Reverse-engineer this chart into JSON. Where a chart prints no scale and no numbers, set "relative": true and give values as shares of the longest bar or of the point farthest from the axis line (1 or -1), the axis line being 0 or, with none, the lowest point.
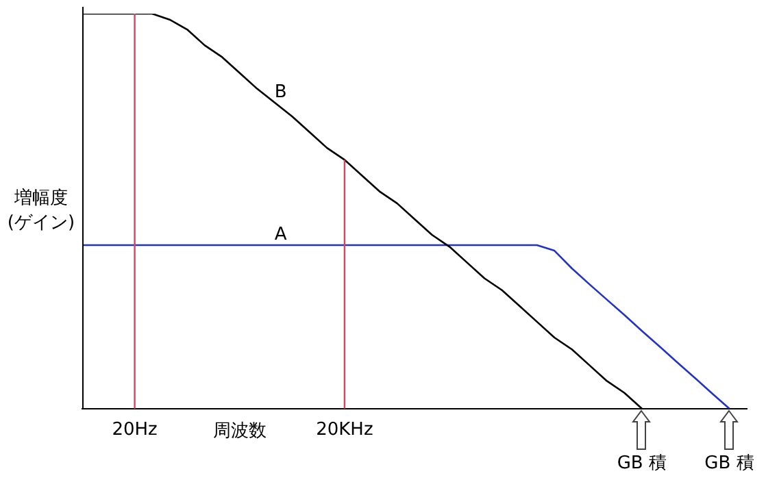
{
  "chart_data": {
    "type": "line",
    "relative": true,
    "xlabel": "周波数",
    "ylabel": "増幅度\n(ゲイン)",
    "categories": [
      null,
      null,
      null,
      "20Hz",
      null,
      null,
      null,
      null,
      null,
      null,
      null,
      null,
      null,
      null,
      null,
      "20KHz",
      null,
      null,
      null,
      null,
      null,
      null,
      null,
      null,
      null,
      null,
      null,
      null,
      null,
      null,
      null,
      null,
      null,
      null,
      null,
      null,
      null,
      null,
      null
    ],
    "series": [
      {
        "name": "B",
        "color": "#000000",
        "values": [
          1,
          1,
          1,
          1,
          1,
          0.985,
          0.96,
          0.92,
          0.89,
          0.85,
          0.81,
          0.775,
          0.74,
          0.7,
          0.66,
          0.63,
          0.59,
          0.55,
          0.52,
          0.48,
          0.44,
          0.41,
          0.37,
          0.33,
          0.3,
          0.26,
          0.22,
          0.18,
          0.15,
          0.11,
          0.07,
          0.04,
          0,
          null,
          null,
          null,
          null,
          null,
          null
        ]
      },
      {
        "name": "A",
        "color": "#2233cc",
        "values": [
          0.414,
          0.414,
          0.414,
          0.414,
          0.414,
          0.414,
          0.414,
          0.414,
          0.414,
          0.414,
          0.414,
          0.414,
          0.414,
          0.414,
          0.414,
          0.414,
          0.414,
          0.414,
          0.414,
          0.414,
          0.414,
          0.414,
          0.414,
          0.414,
          0.414,
          0.414,
          0.414,
          0.4,
          0.355,
          0.315,
          0.276,
          0.237,
          0.197,
          0.158,
          0.118,
          0.079,
          0.039,
          0,
          null
        ]
      }
    ],
    "ref_lines": [
      {
        "axis": "x",
        "value": "20Hz",
        "color": "#e0405a"
      },
      {
        "axis": "x",
        "value": "20KHz",
        "color": "#e0405a"
      }
    ],
    "annotations": [
      "GB 積",
      "GB 積"
    ],
    "grid": false,
    "legend": false,
    "marker": "none",
    "line_style": "solid"
  }
}
